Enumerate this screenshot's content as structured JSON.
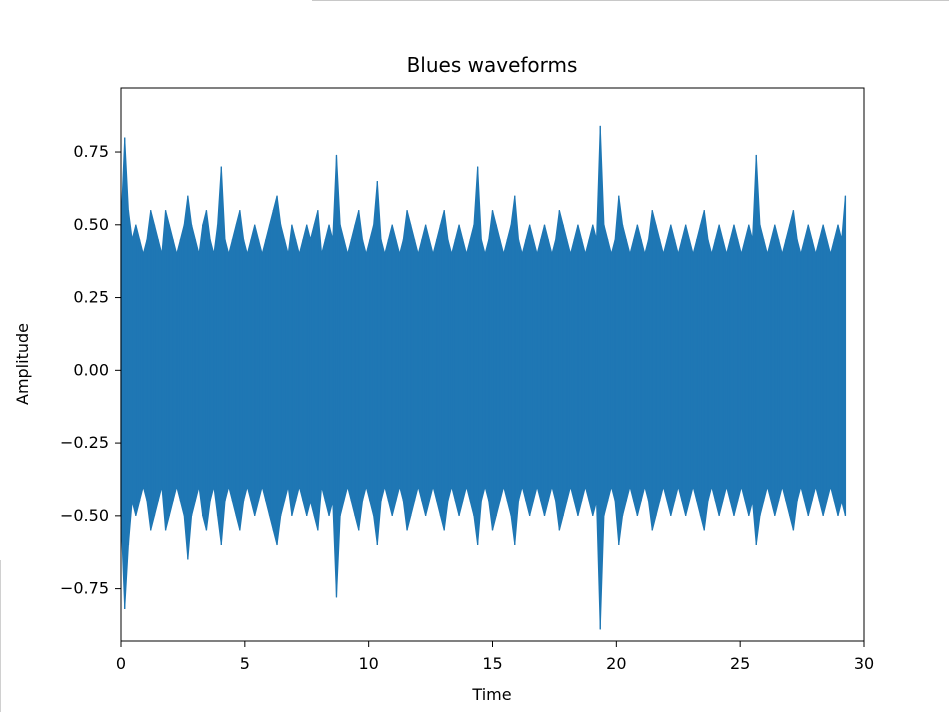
{
  "chart_data": {
    "type": "line",
    "title": "Blues waveforms",
    "xlabel": "Time",
    "ylabel": "Amplitude",
    "xlim": [
      0,
      30
    ],
    "ylim": [
      -0.93,
      0.97
    ],
    "x_ticks": [
      0,
      5,
      10,
      15,
      20,
      25,
      30
    ],
    "x_tick_labels": [
      "0",
      "5",
      "10",
      "15",
      "20",
      "25",
      "30"
    ],
    "y_ticks": [
      -0.75,
      -0.5,
      -0.25,
      0.0,
      0.25,
      0.5,
      0.75
    ],
    "y_tick_labels": [
      "−0.75",
      "−0.50",
      "−0.25",
      "0.00",
      "0.25",
      "0.50",
      "0.75"
    ],
    "grid": false,
    "line_color": "#1f77b4",
    "series": [
      {
        "time_step_s": 0.15,
        "envelope_max": [
          0.5,
          0.8,
          0.55,
          0.45,
          0.5,
          0.45,
          0.4,
          0.45,
          0.55,
          0.5,
          0.45,
          0.4,
          0.55,
          0.5,
          0.45,
          0.4,
          0.45,
          0.5,
          0.6,
          0.5,
          0.45,
          0.4,
          0.5,
          0.55,
          0.45,
          0.4,
          0.5,
          0.7,
          0.45,
          0.4,
          0.45,
          0.5,
          0.55,
          0.45,
          0.4,
          0.45,
          0.5,
          0.45,
          0.4,
          0.45,
          0.5,
          0.55,
          0.6,
          0.5,
          0.45,
          0.4,
          0.5,
          0.45,
          0.4,
          0.45,
          0.5,
          0.45,
          0.5,
          0.55,
          0.4,
          0.45,
          0.5,
          0.45,
          0.74,
          0.5,
          0.45,
          0.4,
          0.45,
          0.5,
          0.55,
          0.45,
          0.4,
          0.45,
          0.5,
          0.65,
          0.45,
          0.4,
          0.45,
          0.5,
          0.45,
          0.4,
          0.45,
          0.55,
          0.5,
          0.45,
          0.4,
          0.45,
          0.5,
          0.45,
          0.4,
          0.45,
          0.5,
          0.55,
          0.45,
          0.4,
          0.45,
          0.5,
          0.45,
          0.4,
          0.45,
          0.5,
          0.7,
          0.45,
          0.4,
          0.45,
          0.55,
          0.5,
          0.45,
          0.4,
          0.45,
          0.5,
          0.6,
          0.45,
          0.4,
          0.45,
          0.5,
          0.45,
          0.4,
          0.45,
          0.5,
          0.45,
          0.4,
          0.45,
          0.55,
          0.5,
          0.45,
          0.4,
          0.45,
          0.5,
          0.45,
          0.4,
          0.45,
          0.5,
          0.45,
          0.84,
          0.5,
          0.45,
          0.4,
          0.45,
          0.6,
          0.5,
          0.45,
          0.4,
          0.45,
          0.5,
          0.45,
          0.4,
          0.45,
          0.55,
          0.5,
          0.45,
          0.4,
          0.45,
          0.5,
          0.45,
          0.4,
          0.45,
          0.5,
          0.45,
          0.4,
          0.45,
          0.5,
          0.55,
          0.45,
          0.4,
          0.45,
          0.5,
          0.45,
          0.4,
          0.45,
          0.5,
          0.45,
          0.4,
          0.45,
          0.5,
          0.45,
          0.74,
          0.5,
          0.45,
          0.4,
          0.45,
          0.5,
          0.45,
          0.4,
          0.45,
          0.5,
          0.55,
          0.45,
          0.4,
          0.45,
          0.5,
          0.45,
          0.4,
          0.45,
          0.5,
          0.45,
          0.4,
          0.45,
          0.5,
          0.45,
          0.6
        ],
        "envelope_min": [
          -0.5,
          -0.82,
          -0.6,
          -0.45,
          -0.5,
          -0.45,
          -0.4,
          -0.45,
          -0.55,
          -0.5,
          -0.45,
          -0.4,
          -0.55,
          -0.5,
          -0.45,
          -0.4,
          -0.45,
          -0.5,
          -0.65,
          -0.5,
          -0.45,
          -0.4,
          -0.5,
          -0.55,
          -0.45,
          -0.4,
          -0.5,
          -0.6,
          -0.45,
          -0.4,
          -0.45,
          -0.5,
          -0.55,
          -0.45,
          -0.4,
          -0.45,
          -0.5,
          -0.45,
          -0.4,
          -0.45,
          -0.5,
          -0.55,
          -0.6,
          -0.5,
          -0.45,
          -0.4,
          -0.5,
          -0.45,
          -0.4,
          -0.45,
          -0.5,
          -0.45,
          -0.5,
          -0.55,
          -0.4,
          -0.45,
          -0.5,
          -0.45,
          -0.78,
          -0.5,
          -0.45,
          -0.4,
          -0.45,
          -0.5,
          -0.55,
          -0.45,
          -0.4,
          -0.45,
          -0.5,
          -0.6,
          -0.45,
          -0.4,
          -0.45,
          -0.5,
          -0.45,
          -0.4,
          -0.45,
          -0.55,
          -0.5,
          -0.45,
          -0.4,
          -0.45,
          -0.5,
          -0.45,
          -0.4,
          -0.45,
          -0.5,
          -0.55,
          -0.45,
          -0.4,
          -0.45,
          -0.5,
          -0.45,
          -0.4,
          -0.45,
          -0.5,
          -0.6,
          -0.45,
          -0.4,
          -0.45,
          -0.55,
          -0.5,
          -0.45,
          -0.4,
          -0.45,
          -0.5,
          -0.6,
          -0.45,
          -0.4,
          -0.45,
          -0.5,
          -0.45,
          -0.4,
          -0.45,
          -0.5,
          -0.45,
          -0.4,
          -0.45,
          -0.55,
          -0.5,
          -0.45,
          -0.4,
          -0.45,
          -0.5,
          -0.45,
          -0.4,
          -0.45,
          -0.5,
          -0.45,
          -0.89,
          -0.5,
          -0.45,
          -0.4,
          -0.45,
          -0.6,
          -0.5,
          -0.45,
          -0.4,
          -0.45,
          -0.5,
          -0.45,
          -0.4,
          -0.45,
          -0.55,
          -0.5,
          -0.45,
          -0.4,
          -0.45,
          -0.5,
          -0.45,
          -0.4,
          -0.45,
          -0.5,
          -0.45,
          -0.4,
          -0.45,
          -0.5,
          -0.55,
          -0.45,
          -0.4,
          -0.45,
          -0.5,
          -0.45,
          -0.4,
          -0.45,
          -0.5,
          -0.45,
          -0.4,
          -0.45,
          -0.5,
          -0.45,
          -0.6,
          -0.5,
          -0.45,
          -0.4,
          -0.45,
          -0.5,
          -0.45,
          -0.4,
          -0.45,
          -0.5,
          -0.55,
          -0.45,
          -0.4,
          -0.45,
          -0.5,
          -0.45,
          -0.4,
          -0.45,
          -0.5,
          -0.45,
          -0.4,
          -0.45,
          -0.5,
          -0.45,
          -0.5
        ]
      }
    ]
  }
}
